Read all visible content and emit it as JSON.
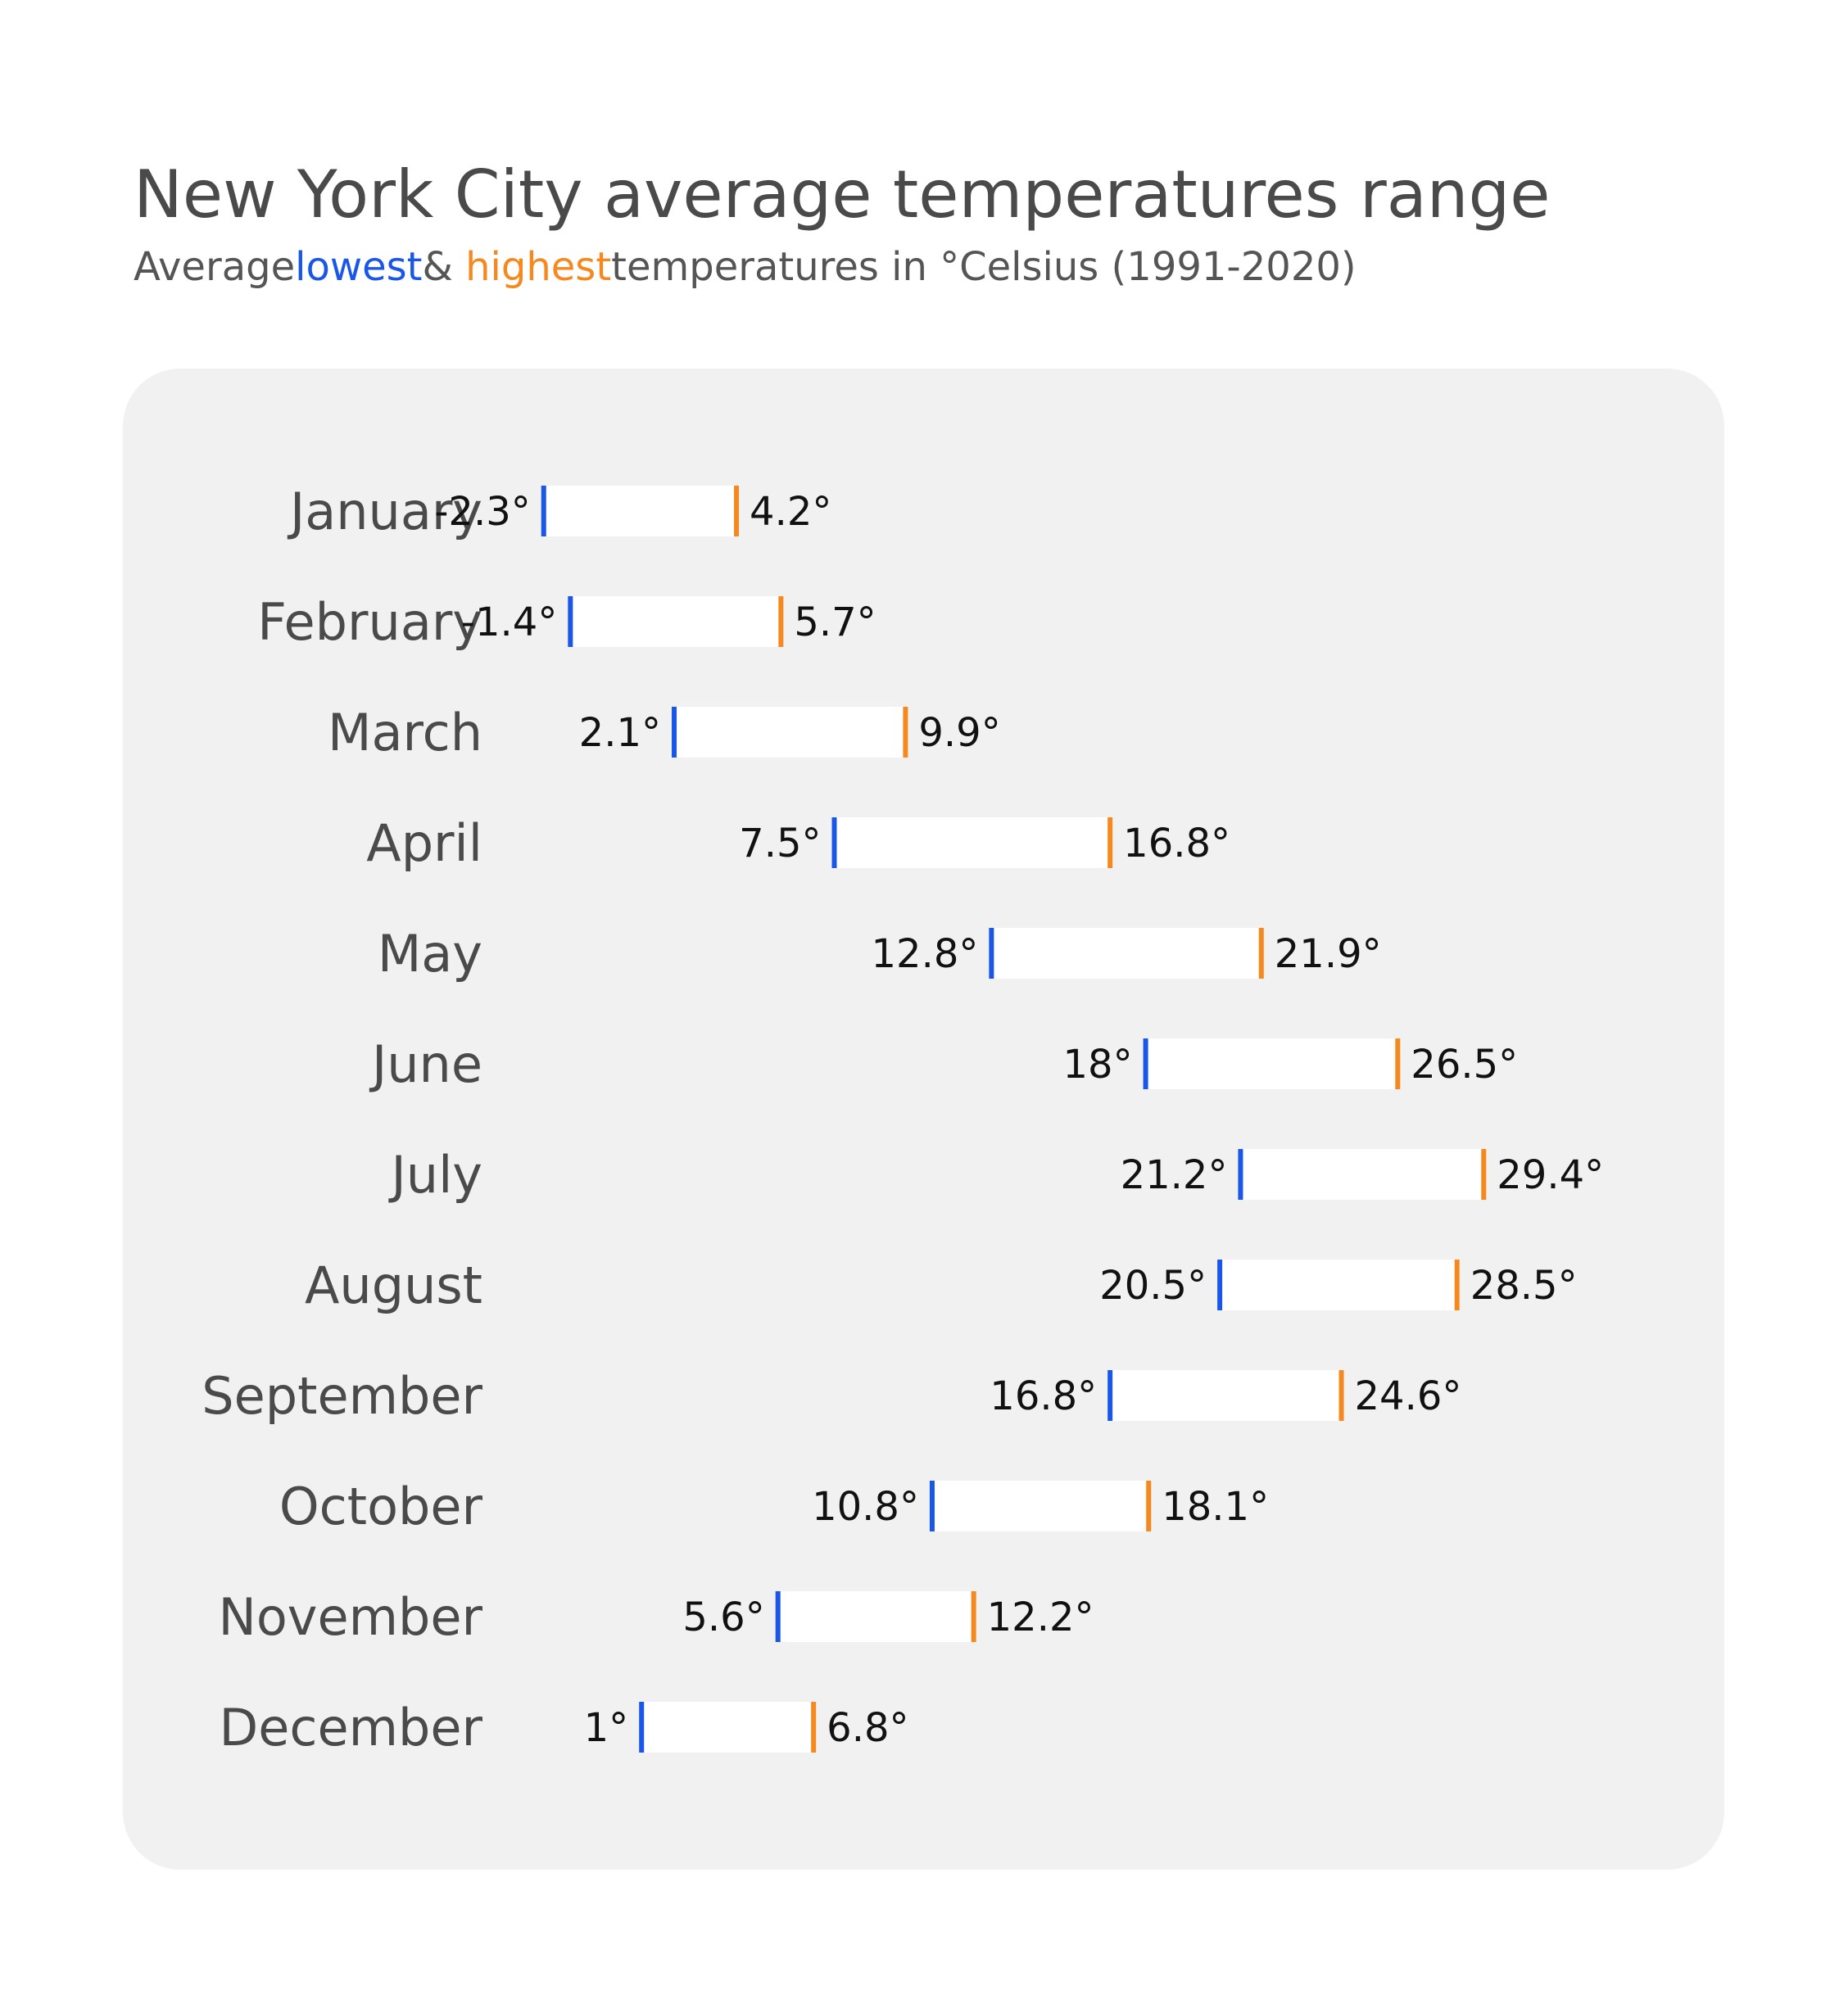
{
  "title": "New York City average temperatures range",
  "subtitle": {
    "prefix": "Average",
    "low_word": "lowest",
    "middle": "& ",
    "high_word": "highest",
    "suffix": "temperatures in °Celsius (1991-2020)"
  },
  "colors": {
    "low": "#1a56e8",
    "high": "#f5891f",
    "bar": "#ffffff",
    "panel": "#f1f1f1"
  },
  "chart_data": {
    "type": "bar",
    "categories": [
      "January",
      "February",
      "March",
      "April",
      "May",
      "June",
      "July",
      "August",
      "September",
      "October",
      "November",
      "December"
    ],
    "series": [
      {
        "name": "lowest",
        "values": [
          -2.3,
          -1.4,
          2.1,
          7.5,
          12.8,
          18,
          21.2,
          20.5,
          16.8,
          10.8,
          5.6,
          1
        ]
      },
      {
        "name": "highest",
        "values": [
          4.2,
          5.7,
          9.9,
          16.8,
          21.9,
          26.5,
          29.4,
          28.5,
          24.6,
          18.1,
          12.2,
          6.8
        ]
      }
    ],
    "value_labels": {
      "low": [
        "-2.3°",
        "-1.4°",
        "2.1°",
        "7.5°",
        "12.8°",
        "18°",
        "21.2°",
        "20.5°",
        "16.8°",
        "10.8°",
        "5.6°",
        "1°"
      ],
      "high": [
        "4.2°",
        "5.7°",
        "9.9°",
        "16.8°",
        "21.9°",
        "26.5°",
        "29.4°",
        "28.5°",
        "24.6°",
        "18.1°",
        "12.2°",
        "6.8°"
      ]
    },
    "grid": false,
    "legend": "subtitle"
  }
}
